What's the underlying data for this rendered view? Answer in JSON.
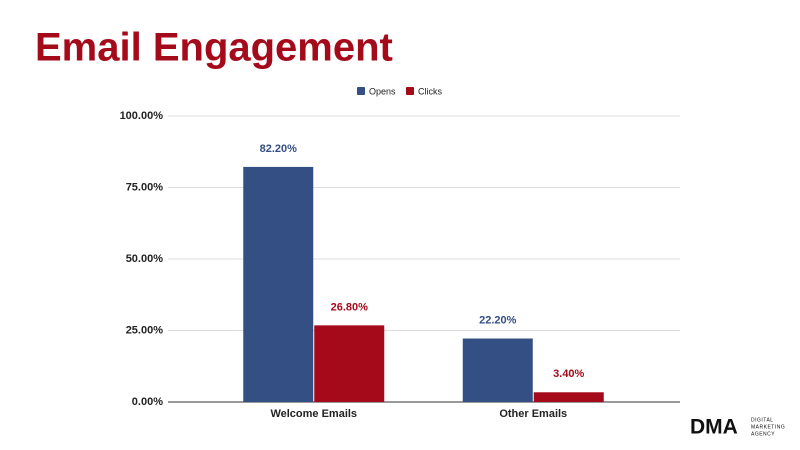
{
  "chart_data": {
    "type": "bar",
    "title": "Email Engagement",
    "categories": [
      "Welcome Emails",
      "Other Emails"
    ],
    "series": [
      {
        "name": "Opens",
        "color": "#344f84",
        "values": [
          82.2,
          22.2
        ],
        "value_labels": [
          "82.20%",
          "22.20%"
        ]
      },
      {
        "name": "Clicks",
        "color": "#a50a1a",
        "values": [
          26.8,
          3.4
        ],
        "value_labels": [
          "26.80%",
          "3.40%"
        ]
      }
    ],
    "ylim": [
      0,
      100
    ],
    "yticks": [
      {
        "value": 0,
        "label": "0.00%"
      },
      {
        "value": 25,
        "label": "25.00%"
      },
      {
        "value": 50,
        "label": "50.00%"
      },
      {
        "value": 75,
        "label": "75.00%"
      },
      {
        "value": 100,
        "label": "100.00%"
      }
    ],
    "grid": true,
    "legend": "top"
  },
  "logo": {
    "mark": "DMA",
    "lines": [
      "DIGITAL",
      "MARKETING",
      "AGENCY"
    ]
  }
}
